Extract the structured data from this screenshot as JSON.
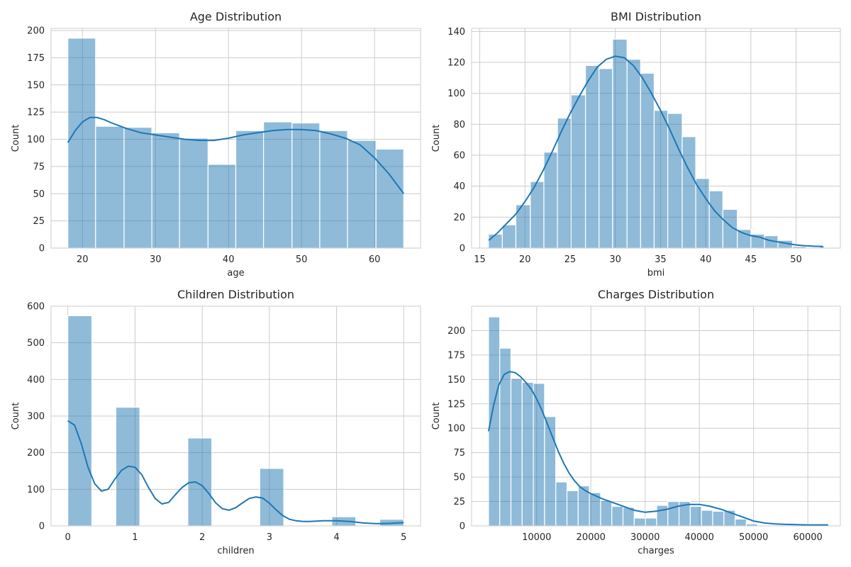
{
  "chart_data": [
    {
      "type": "histogram",
      "title": "Age Distribution",
      "xlabel": "age",
      "ylabel": "Count",
      "xlim": [
        15.7,
        66.3
      ],
      "ylim": [
        0,
        202
      ],
      "xticks": [
        20,
        30,
        40,
        50,
        60
      ],
      "yticks": [
        0,
        25,
        50,
        75,
        100,
        125,
        150,
        175,
        200
      ],
      "bins": [
        {
          "x0": 18.0,
          "x1": 21.8,
          "count": 193
        },
        {
          "x0": 21.8,
          "x1": 25.7,
          "count": 112
        },
        {
          "x0": 25.7,
          "x1": 29.5,
          "count": 111
        },
        {
          "x0": 29.5,
          "x1": 33.3,
          "count": 106
        },
        {
          "x0": 33.3,
          "x1": 37.2,
          "count": 101
        },
        {
          "x0": 37.2,
          "x1": 41.0,
          "count": 77
        },
        {
          "x0": 41.0,
          "x1": 44.8,
          "count": 108
        },
        {
          "x0": 44.8,
          "x1": 48.7,
          "count": 116
        },
        {
          "x0": 48.7,
          "x1": 52.5,
          "count": 115
        },
        {
          "x0": 52.5,
          "x1": 56.3,
          "count": 108
        },
        {
          "x0": 56.3,
          "x1": 60.2,
          "count": 99
        },
        {
          "x0": 60.2,
          "x1": 64.0,
          "count": 91
        }
      ],
      "kde": {
        "x": [
          18,
          19,
          20,
          21,
          22,
          23,
          24,
          26,
          28,
          30,
          32,
          34,
          36,
          38,
          40,
          42,
          44,
          46,
          48,
          50,
          52,
          54,
          56,
          58,
          60,
          62,
          64
        ],
        "y": [
          97,
          108,
          116,
          120,
          120,
          118,
          115,
          110,
          106,
          104,
          102,
          100,
          99,
          99,
          101,
          104,
          106,
          108,
          109,
          109,
          108,
          105,
          101,
          95,
          83,
          68,
          50
        ]
      }
    },
    {
      "type": "histogram",
      "title": "BMI Distribution",
      "xlabel": "bmi",
      "ylabel": "Count",
      "xlim": [
        14.1,
        54.9
      ],
      "ylim": [
        0,
        142
      ],
      "xticks": [
        15,
        20,
        25,
        30,
        35,
        40,
        45,
        50
      ],
      "yticks": [
        0,
        20,
        40,
        60,
        80,
        100,
        120,
        140
      ],
      "bins": [
        {
          "x0": 15.96,
          "x1": 17.5,
          "count": 9
        },
        {
          "x0": 17.5,
          "x1": 19.0,
          "count": 15
        },
        {
          "x0": 19.0,
          "x1": 20.6,
          "count": 28
        },
        {
          "x0": 20.6,
          "x1": 22.1,
          "count": 43
        },
        {
          "x0": 22.1,
          "x1": 23.6,
          "count": 62
        },
        {
          "x0": 23.6,
          "x1": 25.1,
          "count": 84
        },
        {
          "x0": 25.1,
          "x1": 26.7,
          "count": 99
        },
        {
          "x0": 26.7,
          "x1": 28.2,
          "count": 118
        },
        {
          "x0": 28.2,
          "x1": 29.7,
          "count": 116
        },
        {
          "x0": 29.7,
          "x1": 31.3,
          "count": 135
        },
        {
          "x0": 31.3,
          "x1": 32.8,
          "count": 122
        },
        {
          "x0": 32.8,
          "x1": 34.3,
          "count": 113
        },
        {
          "x0": 34.3,
          "x1": 35.8,
          "count": 89
        },
        {
          "x0": 35.8,
          "x1": 37.4,
          "count": 87
        },
        {
          "x0": 37.4,
          "x1": 38.9,
          "count": 72
        },
        {
          "x0": 38.9,
          "x1": 40.4,
          "count": 45
        },
        {
          "x0": 40.4,
          "x1": 41.9,
          "count": 37
        },
        {
          "x0": 41.9,
          "x1": 43.5,
          "count": 25
        },
        {
          "x0": 43.5,
          "x1": 45.0,
          "count": 12
        },
        {
          "x0": 45.0,
          "x1": 46.5,
          "count": 9
        },
        {
          "x0": 46.5,
          "x1": 48.0,
          "count": 8
        },
        {
          "x0": 48.0,
          "x1": 49.6,
          "count": 5
        },
        {
          "x0": 49.6,
          "x1": 51.1,
          "count": 1
        },
        {
          "x0": 51.1,
          "x1": 52.6,
          "count": 0
        },
        {
          "x0": 52.6,
          "x1": 53.13,
          "count": 1
        }
      ],
      "kde": {
        "x": [
          16,
          17,
          18,
          19,
          20,
          21,
          22,
          23,
          24,
          25,
          26,
          27,
          28,
          29,
          30,
          31,
          32,
          33,
          34,
          35,
          36,
          37,
          38,
          39,
          40,
          41,
          42,
          43,
          44,
          45,
          46,
          47,
          48,
          49,
          50,
          51,
          52,
          53
        ],
        "y": [
          5,
          10,
          16,
          22,
          30,
          39,
          50,
          62,
          75,
          87,
          98,
          108,
          117,
          122,
          124,
          123,
          118,
          110,
          100,
          89,
          77,
          64,
          52,
          41,
          32,
          24,
          18,
          13,
          10,
          8,
          7,
          5,
          4,
          3,
          2,
          1.5,
          1.2,
          1
        ]
      }
    },
    {
      "type": "histogram",
      "title": "Children Distribution",
      "xlabel": "children",
      "ylabel": "Count",
      "xlim": [
        -0.25,
        5.25
      ],
      "ylim": [
        0,
        600
      ],
      "xticks": [
        0,
        1,
        2,
        3,
        4,
        5
      ],
      "yticks": [
        0,
        100,
        200,
        300,
        400,
        500,
        600
      ],
      "bins": [
        {
          "x0": 0.0,
          "x1": 0.357,
          "count": 574
        },
        {
          "x0": 0.714,
          "x1": 1.071,
          "count": 324
        },
        {
          "x0": 1.786,
          "x1": 2.143,
          "count": 240
        },
        {
          "x0": 2.857,
          "x1": 3.214,
          "count": 157
        },
        {
          "x0": 3.929,
          "x1": 4.286,
          "count": 25
        },
        {
          "x0": 4.643,
          "x1": 5.0,
          "count": 18
        }
      ],
      "kde": {
        "x": [
          0,
          0.1,
          0.2,
          0.3,
          0.4,
          0.5,
          0.6,
          0.7,
          0.8,
          0.9,
          1.0,
          1.1,
          1.2,
          1.3,
          1.4,
          1.5,
          1.6,
          1.7,
          1.8,
          1.9,
          2.0,
          2.1,
          2.2,
          2.3,
          2.4,
          2.5,
          2.6,
          2.7,
          2.8,
          2.9,
          3.0,
          3.1,
          3.2,
          3.3,
          3.4,
          3.5,
          3.6,
          3.8,
          4.0,
          4.2,
          4.4,
          4.6,
          4.8,
          5.0
        ],
        "y": [
          287,
          275,
          225,
          160,
          115,
          95,
          100,
          128,
          152,
          163,
          160,
          140,
          105,
          75,
          60,
          64,
          85,
          105,
          118,
          120,
          110,
          88,
          63,
          47,
          43,
          50,
          63,
          75,
          79,
          76,
          62,
          44,
          28,
          18,
          14,
          12,
          12,
          14,
          14,
          12,
          8,
          6,
          7,
          9
        ]
      }
    },
    {
      "type": "histogram",
      "title": "Charges Distribution",
      "xlabel": "charges",
      "ylabel": "Count",
      "xlim": [
        -2000,
        66000
      ],
      "ylim": [
        0,
        225
      ],
      "xticks": [
        10000,
        20000,
        30000,
        40000,
        50000,
        60000
      ],
      "yticks": [
        0,
        25,
        50,
        75,
        100,
        125,
        150,
        175,
        200
      ],
      "bins": [
        {
          "x0": 1122,
          "x1": 3189,
          "count": 214
        },
        {
          "x0": 3189,
          "x1": 5255,
          "count": 182
        },
        {
          "x0": 5255,
          "x1": 7322,
          "count": 151
        },
        {
          "x0": 7322,
          "x1": 9389,
          "count": 147
        },
        {
          "x0": 9389,
          "x1": 11455,
          "count": 146
        },
        {
          "x0": 11455,
          "x1": 13522,
          "count": 112
        },
        {
          "x0": 13522,
          "x1": 15589,
          "count": 45
        },
        {
          "x0": 15589,
          "x1": 17655,
          "count": 36
        },
        {
          "x0": 17655,
          "x1": 19722,
          "count": 41
        },
        {
          "x0": 19722,
          "x1": 21789,
          "count": 34
        },
        {
          "x0": 21789,
          "x1": 23855,
          "count": 26
        },
        {
          "x0": 23855,
          "x1": 25922,
          "count": 20
        },
        {
          "x0": 25922,
          "x1": 27989,
          "count": 19
        },
        {
          "x0": 27989,
          "x1": 30055,
          "count": 8
        },
        {
          "x0": 30055,
          "x1": 32122,
          "count": 8
        },
        {
          "x0": 32122,
          "x1": 34189,
          "count": 21
        },
        {
          "x0": 34189,
          "x1": 36255,
          "count": 25
        },
        {
          "x0": 36255,
          "x1": 38322,
          "count": 25
        },
        {
          "x0": 38322,
          "x1": 40389,
          "count": 20
        },
        {
          "x0": 40389,
          "x1": 42455,
          "count": 16
        },
        {
          "x0": 42455,
          "x1": 44522,
          "count": 15
        },
        {
          "x0": 44522,
          "x1": 46589,
          "count": 16
        },
        {
          "x0": 46589,
          "x1": 48655,
          "count": 7
        },
        {
          "x0": 48655,
          "x1": 50722,
          "count": 2
        },
        {
          "x0": 50722,
          "x1": 52789,
          "count": 0
        },
        {
          "x0": 52789,
          "x1": 54855,
          "count": 0
        },
        {
          "x0": 54855,
          "x1": 56922,
          "count": 0
        },
        {
          "x0": 56922,
          "x1": 58989,
          "count": 0
        },
        {
          "x0": 58989,
          "x1": 61055,
          "count": 1
        },
        {
          "x0": 61055,
          "x1": 63122,
          "count": 0
        },
        {
          "x0": 63122,
          "x1": 63770,
          "count": 1
        }
      ],
      "kde": {
        "x": [
          1122,
          2000,
          3000,
          4000,
          5000,
          6000,
          7000,
          8000,
          9000,
          10000,
          11000,
          12000,
          13000,
          14000,
          15000,
          16000,
          17000,
          18000,
          19000,
          20000,
          22000,
          24000,
          26000,
          28000,
          30000,
          32000,
          34000,
          36000,
          38000,
          40000,
          42000,
          44000,
          46000,
          48000,
          50000,
          52000,
          54000,
          56000,
          58000,
          60000,
          62000,
          63770
        ],
        "y": [
          97,
          122,
          144,
          155,
          158,
          157,
          153,
          147,
          140,
          130,
          118,
          104,
          90,
          76,
          64,
          54,
          46,
          40,
          36,
          33,
          28,
          24,
          20,
          16,
          14,
          15,
          17,
          20,
          22,
          22,
          20,
          17,
          13,
          9,
          5,
          3,
          2,
          1.5,
          1.2,
          1,
          1,
          1
        ]
      }
    }
  ]
}
